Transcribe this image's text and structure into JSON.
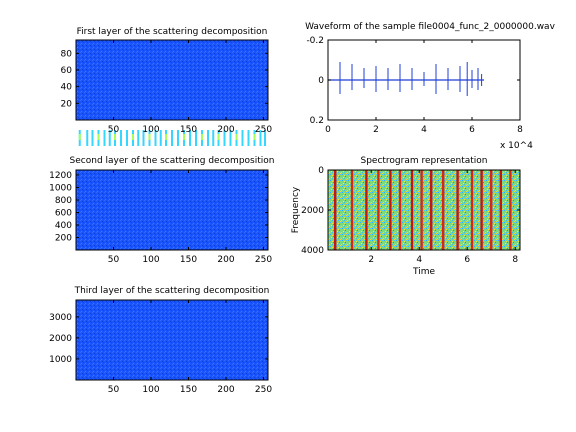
{
  "figure": {
    "colors": {
      "frame": "#000000",
      "waveform": "#1f3fd8",
      "jet_background": "#1a54ff"
    }
  },
  "chart_data": [
    {
      "id": "scat1",
      "type": "heatmap",
      "title": "First layer of the scattering decomposition",
      "xlabel": "",
      "ylabel": "",
      "xlim": [
        0,
        256
      ],
      "ylim": [
        96,
        0
      ],
      "xticks": [
        50,
        100,
        150,
        200,
        250
      ],
      "yticks": [
        20,
        40,
        60,
        80
      ],
      "colormap": "jet",
      "active_rows": [
        0,
        45
      ],
      "event_columns": [
        5,
        15,
        22,
        30,
        38,
        45,
        52,
        60,
        68,
        76,
        83,
        90,
        98,
        106,
        113,
        120,
        128,
        136,
        144,
        152,
        160,
        168,
        176,
        183,
        190,
        198,
        206,
        214,
        222,
        230,
        238,
        246,
        252
      ]
    },
    {
      "id": "waveform",
      "type": "line",
      "title": "Waveform of the sample file0004_func_2_0000000.wav",
      "xlabel": "",
      "ylabel": "",
      "xlim": [
        0,
        80000
      ],
      "ylim": [
        -0.2,
        0.2
      ],
      "xticks": [
        0,
        2,
        4,
        6,
        8
      ],
      "yticks": [
        -0.2,
        0,
        0.2
      ],
      "x_multiplier": "x 10^4",
      "duration_samples": 65000,
      "series": [
        {
          "spikes": [
            {
              "x": 0,
              "ymin": -0.13,
              "ymax": 0.11
            },
            {
              "x": 5000,
              "ymin": -0.09,
              "ymax": 0.07
            },
            {
              "x": 10000,
              "ymin": -0.08,
              "ymax": 0.05
            },
            {
              "x": 15000,
              "ymin": -0.06,
              "ymax": 0.04
            },
            {
              "x": 20000,
              "ymin": -0.07,
              "ymax": 0.06
            },
            {
              "x": 25000,
              "ymin": -0.06,
              "ymax": 0.05
            },
            {
              "x": 30000,
              "ymin": -0.08,
              "ymax": 0.06
            },
            {
              "x": 35000,
              "ymin": -0.06,
              "ymax": 0.05
            },
            {
              "x": 40000,
              "ymin": -0.04,
              "ymax": 0.03
            },
            {
              "x": 45000,
              "ymin": -0.08,
              "ymax": 0.07
            },
            {
              "x": 50000,
              "ymin": -0.06,
              "ymax": 0.05
            },
            {
              "x": 55000,
              "ymin": -0.07,
              "ymax": 0.06
            },
            {
              "x": 58000,
              "ymin": -0.09,
              "ymax": 0.08
            },
            {
              "x": 60000,
              "ymin": -0.05,
              "ymax": 0.04
            },
            {
              "x": 62500,
              "ymin": -0.06,
              "ymax": 0.05
            },
            {
              "x": 64000,
              "ymin": -0.03,
              "ymax": 0.03
            }
          ]
        }
      ]
    },
    {
      "id": "scat2",
      "type": "heatmap",
      "title": "Second layer of the scattering decomposition",
      "xlabel": "",
      "ylabel": "",
      "xlim": [
        0,
        256
      ],
      "ylim": [
        1280,
        0
      ],
      "xticks": [
        50,
        100,
        150,
        200,
        250
      ],
      "yticks": [
        200,
        400,
        600,
        800,
        1000,
        1200
      ],
      "colormap": "jet",
      "active_rows": [
        0,
        1000
      ]
    },
    {
      "id": "spectrogram",
      "type": "heatmap",
      "title": "Spectrogram representation",
      "xlabel": "Time",
      "ylabel": "Frequency",
      "xlim": [
        0.2,
        8.2
      ],
      "ylim": [
        0,
        4000
      ],
      "xticks": [
        2,
        4,
        6,
        8
      ],
      "yticks": [
        0,
        2000,
        4000
      ],
      "colormap": "jet",
      "event_times": [
        0.5,
        1.2,
        1.8,
        2.3,
        2.8,
        3.2,
        3.7,
        4.1,
        4.5,
        5.0,
        5.6,
        6.2,
        6.6,
        7.0,
        7.4,
        7.8
      ]
    },
    {
      "id": "scat3",
      "type": "heatmap",
      "title": "Third layer of the scattering decomposition",
      "xlabel": "",
      "ylabel": "",
      "xlim": [
        0,
        256
      ],
      "ylim": [
        3800,
        0
      ],
      "xticks": [
        50,
        100,
        150,
        200,
        250
      ],
      "yticks": [
        1000,
        2000,
        3000
      ],
      "colormap": "jet",
      "active_bands": [
        [
          0,
          400
        ],
        [
          1500,
          1700
        ],
        [
          2200,
          2600
        ]
      ]
    }
  ]
}
